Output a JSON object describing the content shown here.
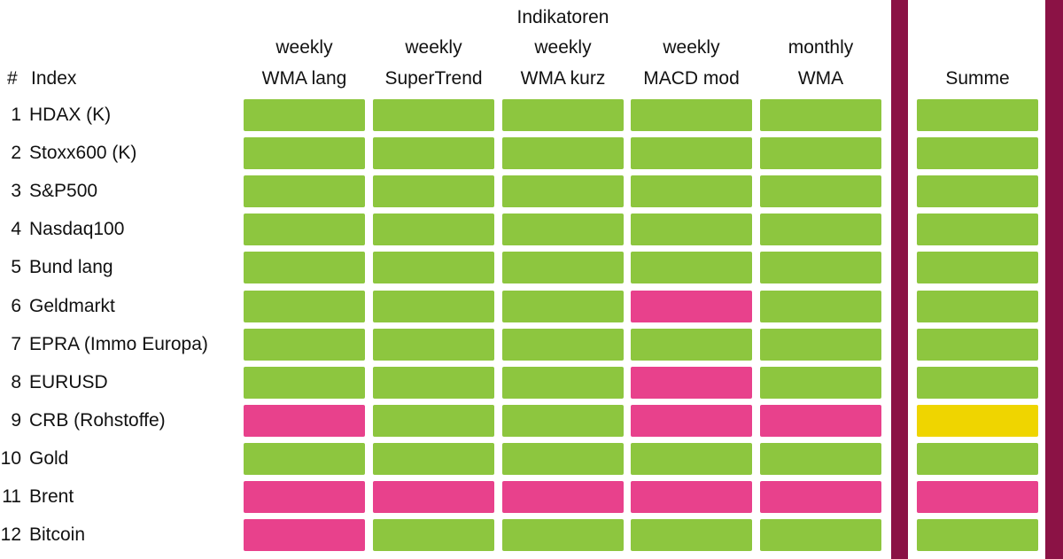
{
  "chart_data": {
    "type": "heatmap",
    "title": "Indikatoren",
    "index_header": {
      "hash": "#",
      "label": "Index"
    },
    "col_headers": [
      {
        "period": "weekly",
        "name": "WMA lang"
      },
      {
        "period": "weekly",
        "name": "SuperTrend"
      },
      {
        "period": "weekly",
        "name": "WMA kurz"
      },
      {
        "period": "weekly",
        "name": "MACD mod"
      },
      {
        "period": "monthly",
        "name": "WMA"
      }
    ],
    "summe_header": "Summe",
    "rows": [
      {
        "num": "1",
        "label": "HDAX (K)",
        "indicators": [
          "green",
          "green",
          "green",
          "green",
          "green"
        ],
        "summe": "green"
      },
      {
        "num": "2",
        "label": "Stoxx600 (K)",
        "indicators": [
          "green",
          "green",
          "green",
          "green",
          "green"
        ],
        "summe": "green"
      },
      {
        "num": "3",
        "label": "S&P500",
        "indicators": [
          "green",
          "green",
          "green",
          "green",
          "green"
        ],
        "summe": "green"
      },
      {
        "num": "4",
        "label": "Nasdaq100",
        "indicators": [
          "green",
          "green",
          "green",
          "green",
          "green"
        ],
        "summe": "green"
      },
      {
        "num": "5",
        "label": "Bund lang",
        "indicators": [
          "green",
          "green",
          "green",
          "green",
          "green"
        ],
        "summe": "green"
      },
      {
        "num": "6",
        "label": "Geldmarkt",
        "indicators": [
          "green",
          "green",
          "green",
          "pink",
          "green"
        ],
        "summe": "green"
      },
      {
        "num": "7",
        "label": "EPRA (Immo Europa)",
        "indicators": [
          "green",
          "green",
          "green",
          "green",
          "green"
        ],
        "summe": "green"
      },
      {
        "num": "8",
        "label": "EURUSD",
        "indicators": [
          "green",
          "green",
          "green",
          "pink",
          "green"
        ],
        "summe": "green"
      },
      {
        "num": "9",
        "label": "CRB (Rohstoffe)",
        "indicators": [
          "pink",
          "green",
          "green",
          "pink",
          "pink"
        ],
        "summe": "yellow"
      },
      {
        "num": "10",
        "label": "Gold",
        "indicators": [
          "green",
          "green",
          "green",
          "green",
          "green"
        ],
        "summe": "green"
      },
      {
        "num": "11",
        "label": "Brent",
        "indicators": [
          "pink",
          "pink",
          "pink",
          "pink",
          "pink"
        ],
        "summe": "pink"
      },
      {
        "num": "12",
        "label": "Bitcoin",
        "indicators": [
          "pink",
          "green",
          "green",
          "green",
          "green"
        ],
        "summe": "green"
      }
    ]
  },
  "colors": {
    "green": "#8dc63f",
    "pink": "#e8418c",
    "yellow": "#efd500",
    "maroon": "#8b1245",
    "background": "#ffffff",
    "text": "#111111"
  }
}
